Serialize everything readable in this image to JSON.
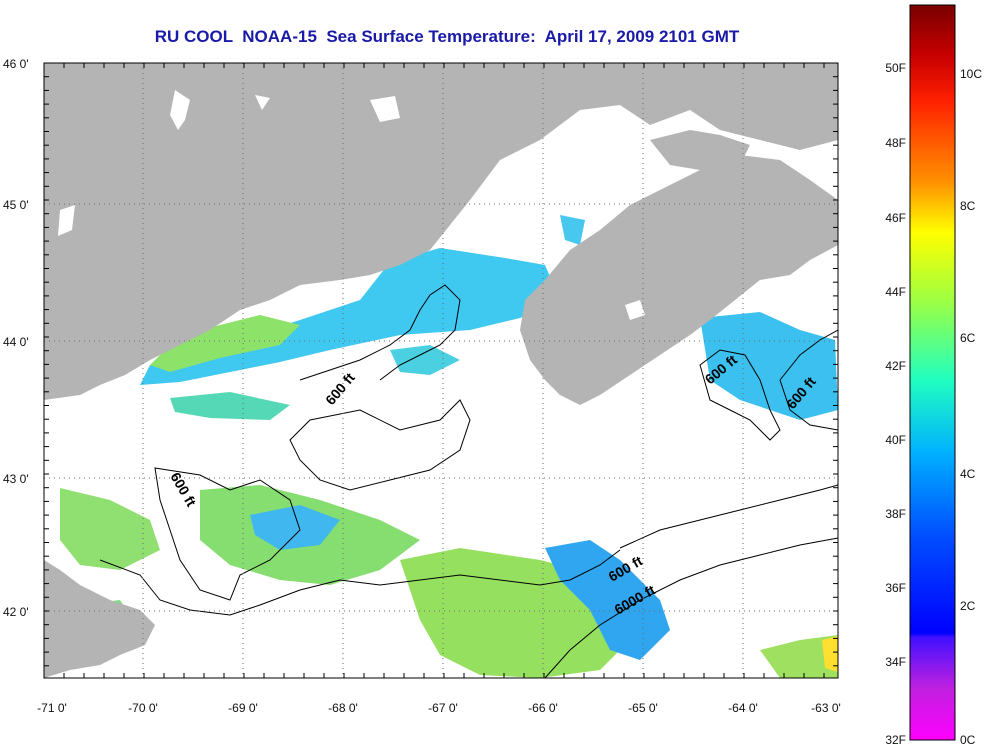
{
  "title": "RU COOL  NOAA-15  Sea Surface Temperature:  April 17, 2009 2101 GMT",
  "latitude_ticks": [
    "46 0'",
    "45 0'",
    "44 0'",
    "43 0'",
    "42 0'"
  ],
  "longitude_ticks": [
    "-71 0'",
    "-70 0'",
    "-69 0'",
    "-68 0'",
    "-67 0'",
    "-66 0'",
    "-65 0'",
    "-64 0'",
    "-63 0'"
  ],
  "contour_labels": [
    "600 ft",
    "600 ft",
    "600 ft",
    "600 ft",
    "6000 ft",
    "600 ft"
  ],
  "colorbar": {
    "fahrenheit_labels": [
      "50F",
      "48F",
      "46F",
      "44F",
      "42F",
      "40F",
      "38F",
      "36F",
      "34F",
      "32F"
    ],
    "celsius_labels": [
      "10C",
      "8C",
      "6C",
      "4C",
      "2C",
      "0C"
    ],
    "colors": [
      "#8b0000",
      "#ff0000",
      "#ff8000",
      "#ffff00",
      "#7fff55",
      "#00ffff",
      "#0080ff",
      "#0000ff",
      "#8000c0",
      "#ff00ff"
    ]
  },
  "colors": {
    "land": "#b4b4b4",
    "title": "#1a1aa8",
    "no_data": "#ffffff"
  }
}
